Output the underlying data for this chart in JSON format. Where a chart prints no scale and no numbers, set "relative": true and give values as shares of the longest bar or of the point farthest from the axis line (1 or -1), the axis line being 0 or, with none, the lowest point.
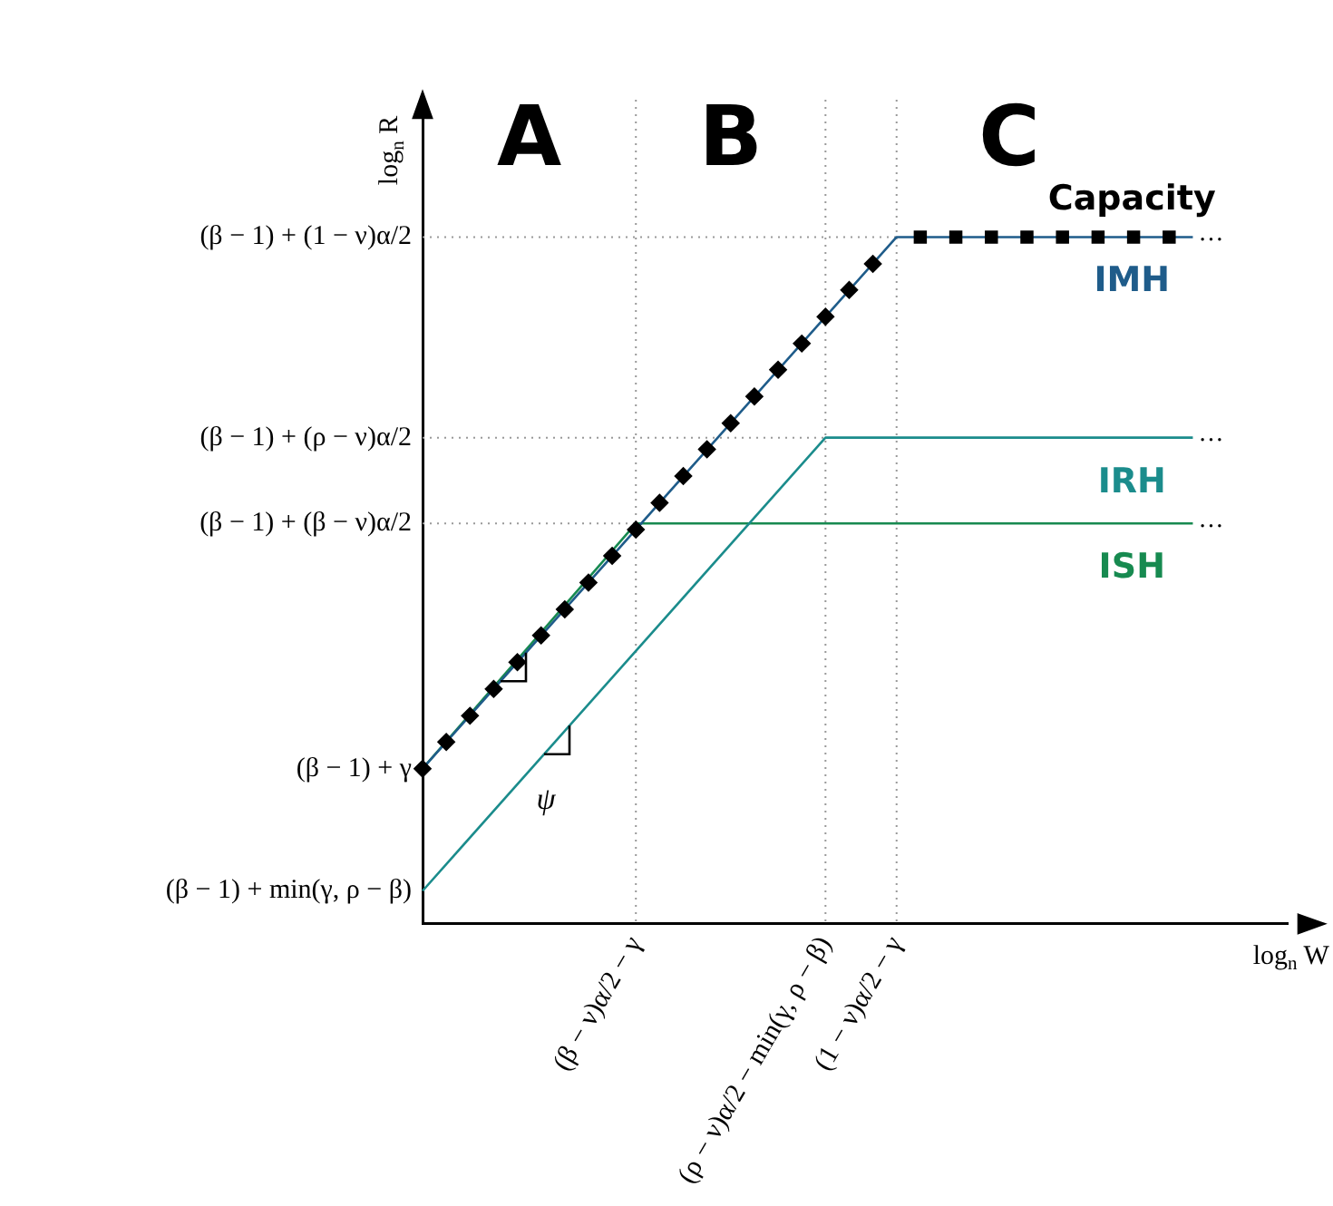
{
  "chart_data": {
    "type": "line",
    "relative": true,
    "xlabel": "log$_{n}$ W",
    "ylabel": "log$_{n}$ R",
    "categories": [
      null,
      null,
      null,
      null,
      null,
      null,
      null,
      null,
      null,
      null,
      null,
      null,
      null,
      null,
      null,
      null,
      null,
      null,
      "(β − ν)α/2 − γ",
      null,
      null,
      null,
      null,
      null,
      null,
      null,
      null,
      null,
      null,
      null,
      null,
      null,
      null,
      null,
      "(ρ − ν)α/2 − min(γ, ρ − β)",
      null,
      null,
      null,
      null,
      null,
      "(1 − ν)α/2 − γ",
      null,
      null,
      null,
      null,
      null,
      null,
      null,
      null,
      null,
      null,
      null,
      null,
      null,
      null,
      null,
      null,
      null,
      null,
      null,
      null,
      null,
      null,
      null,
      null,
      null,
      null,
      null,
      null,
      null,
      null,
      null,
      null,
      null
    ],
    "legend": "right",
    "series": [
      {
        "name": "IMH",
        "color": "#1f5c8a",
        "marker": "none",
        "line_style": "solid",
        "values": [
          0.226,
          null,
          null,
          null,
          null,
          null,
          null,
          null,
          null,
          null,
          null,
          null,
          null,
          null,
          null,
          null,
          null,
          null,
          null,
          null,
          null,
          null,
          null,
          null,
          null,
          null,
          null,
          null,
          null,
          null,
          null,
          null,
          null,
          null,
          null,
          null,
          null,
          null,
          null,
          null,
          1,
          null,
          null,
          null,
          null,
          null,
          null,
          null,
          null,
          null,
          null,
          null,
          null,
          null,
          null,
          null,
          null,
          null,
          null,
          null,
          null,
          null,
          null,
          null,
          null,
          1,
          null,
          null,
          null,
          null,
          null,
          null,
          null,
          null
        ]
      },
      {
        "name": "IRH",
        "color": "#1b8c8c",
        "marker": "none",
        "line_style": "solid",
        "values": [
          0.048,
          null,
          null,
          null,
          null,
          null,
          null,
          null,
          null,
          null,
          null,
          null,
          null,
          null,
          null,
          null,
          null,
          null,
          null,
          null,
          null,
          null,
          null,
          null,
          null,
          null,
          null,
          null,
          null,
          null,
          null,
          null,
          null,
          null,
          0.708,
          null,
          null,
          null,
          null,
          null,
          null,
          null,
          null,
          null,
          null,
          null,
          null,
          null,
          null,
          null,
          null,
          null,
          null,
          null,
          null,
          null,
          null,
          null,
          null,
          null,
          null,
          null,
          null,
          null,
          null,
          0.708,
          null,
          null,
          null,
          null,
          null,
          null,
          null,
          null
        ]
      },
      {
        "name": "ISH",
        "color": "#178a50",
        "marker": "none",
        "line_style": "solid",
        "values": [
          0.226,
          null,
          null,
          null,
          null,
          null,
          null,
          null,
          null,
          null,
          null,
          null,
          null,
          null,
          null,
          null,
          null,
          null,
          0.583,
          null,
          null,
          null,
          null,
          null,
          null,
          null,
          null,
          null,
          null,
          null,
          null,
          null,
          null,
          null,
          null,
          null,
          null,
          null,
          null,
          null,
          null,
          null,
          null,
          null,
          null,
          null,
          null,
          null,
          null,
          null,
          null,
          null,
          null,
          null,
          null,
          null,
          null,
          null,
          null,
          null,
          null,
          null,
          null,
          null,
          null,
          0.583,
          null,
          null,
          null,
          null,
          null,
          null,
          null,
          null
        ]
      },
      {
        "color": "#000000",
        "marker": "diamond",
        "line_style": "none",
        "values": [
          0.226,
          null,
          0.265,
          null,
          0.303,
          null,
          0.342,
          null,
          0.381,
          null,
          0.42,
          null,
          0.458,
          null,
          0.497,
          null,
          0.536,
          null,
          0.574,
          null,
          0.613,
          null,
          0.652,
          null,
          0.691,
          null,
          0.729,
          null,
          0.768,
          null,
          0.807,
          null,
          0.845,
          null,
          0.884,
          null,
          0.923,
          null,
          0.961,
          null,
          null,
          null,
          null,
          null,
          null,
          null,
          null,
          null,
          null,
          null,
          null,
          null,
          null,
          null,
          null,
          null,
          null,
          null,
          null,
          null,
          null,
          null,
          null,
          null,
          null,
          null,
          null,
          null,
          null,
          null,
          null,
          null,
          null,
          null
        ]
      },
      {
        "name": "Capacity",
        "color": "#000000",
        "marker": "square",
        "line_style": "none",
        "values": [
          null,
          null,
          null,
          null,
          null,
          null,
          null,
          null,
          null,
          null,
          null,
          null,
          null,
          null,
          null,
          null,
          null,
          null,
          null,
          null,
          null,
          null,
          null,
          null,
          null,
          null,
          null,
          null,
          null,
          null,
          null,
          null,
          null,
          null,
          null,
          null,
          null,
          null,
          null,
          null,
          null,
          null,
          1,
          null,
          null,
          1,
          null,
          null,
          1,
          null,
          null,
          1,
          null,
          null,
          1,
          null,
          null,
          1,
          null,
          null,
          1,
          null,
          null,
          1,
          null,
          null,
          null,
          null,
          null,
          null,
          null,
          null,
          null,
          null
        ]
      }
    ],
    "ref_lines": [
      {
        "axis": "x",
        "value": "(β − ν)α/2 − γ",
        "color": "#999999",
        "line_style": "dotted"
      },
      {
        "axis": "x",
        "value": "(ρ − ν)α/2 − min(γ, ρ − β)",
        "color": "#999999",
        "line_style": "dotted"
      },
      {
        "axis": "x",
        "value": "(1 − ν)α/2 − γ",
        "color": "#999999",
        "line_style": "dotted"
      },
      {
        "axis": "y",
        "value": 1,
        "color": "#999999",
        "line_style": "dotted"
      },
      {
        "axis": "y",
        "value": 0.708,
        "color": "#999999",
        "line_style": "dotted"
      },
      {
        "axis": "y",
        "value": 0.583,
        "color": "#999999",
        "line_style": "dotted"
      }
    ],
    "annotations": [
      "A",
      "B",
      "C",
      "ψ",
      "(β − 1) + min(γ, ρ − β)",
      "(β − 1) + γ",
      "(β − 1) + (β − ν)α/2",
      "(β − 1) + (ρ − ν)α/2",
      "(β − 1) + (1 − ν)α/2",
      "…",
      "…",
      "…"
    ]
  }
}
